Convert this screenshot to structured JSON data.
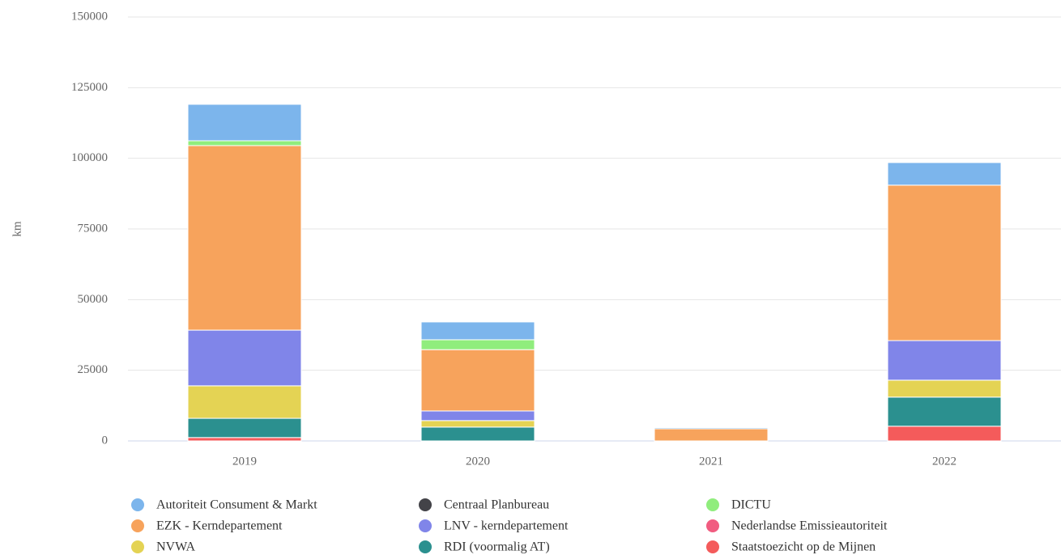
{
  "chart_data": {
    "type": "bar",
    "stacked": true,
    "y_label": "km",
    "categories": [
      "2019",
      "2020",
      "2021",
      "2022"
    ],
    "ylim": [
      0,
      150000
    ],
    "yticks": [
      0,
      25000,
      50000,
      75000,
      100000,
      125000,
      150000
    ],
    "grid": true,
    "series": [
      {
        "name": "Autoriteit Consument & Markt",
        "color": "#7cb5ec",
        "values": [
          12900,
          6300,
          400,
          8000
        ]
      },
      {
        "name": "Centraal Planbureau",
        "color": "#434348",
        "values": [
          0,
          0,
          0,
          0
        ]
      },
      {
        "name": "DICTU",
        "color": "#90ed7d",
        "values": [
          1700,
          3500,
          0,
          0
        ]
      },
      {
        "name": "EZK - Kerndepartement",
        "color": "#f7a35c",
        "values": [
          65300,
          21700,
          4300,
          55000
        ]
      },
      {
        "name": "LNV - kerndepartement",
        "color": "#8085e9",
        "values": [
          19700,
          3400,
          0,
          14000
        ]
      },
      {
        "name": "Nederlandse Emissieautoriteit",
        "color": "#f15c80",
        "values": [
          0,
          0,
          0,
          0
        ]
      },
      {
        "name": "NVWA",
        "color": "#e4d354",
        "values": [
          11500,
          2300,
          0,
          6000
        ]
      },
      {
        "name": "RDI (voormalig AT)",
        "color": "#2b908f",
        "values": [
          6800,
          4900,
          0,
          10300
        ]
      },
      {
        "name": "Staatstoezicht op de Mijnen",
        "color": "#f45b5b",
        "values": [
          1200,
          0,
          0,
          5200
        ]
      }
    ]
  }
}
